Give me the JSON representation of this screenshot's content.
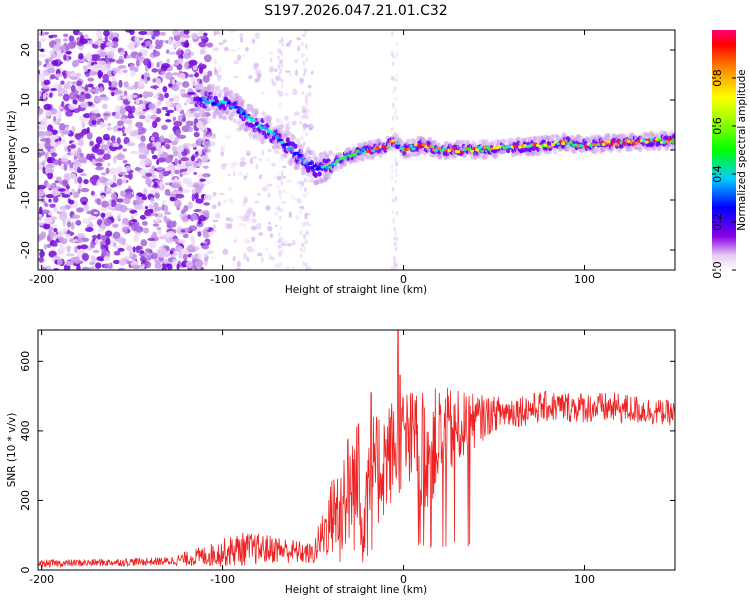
{
  "title": "S197.2026.047.21.01.C32",
  "chart_data": [
    {
      "type": "heatmap",
      "name": "spectrogram",
      "xlabel": "Height of straight line (km)",
      "ylabel": "Frequency (Hz)",
      "xlim": [
        -202,
        150
      ],
      "ylim": [
        -24,
        24
      ],
      "xticks": [
        -200,
        -100,
        0,
        100
      ],
      "yticks": [
        -20,
        -10,
        0,
        10,
        20
      ],
      "xtick_labels": [
        "-200",
        "-100",
        "0",
        "100"
      ],
      "ytick_labels": [
        "-20",
        "-10",
        "0",
        "10",
        "20"
      ],
      "ridge": [
        {
          "x": -110,
          "y": 10
        },
        {
          "x": -95,
          "y": 9
        },
        {
          "x": -85,
          "y": 6
        },
        {
          "x": -75,
          "y": 4
        },
        {
          "x": -65,
          "y": 1
        },
        {
          "x": -55,
          "y": -2
        },
        {
          "x": -47,
          "y": -4
        },
        {
          "x": -40,
          "y": -3
        },
        {
          "x": -30,
          "y": -1
        },
        {
          "x": -20,
          "y": 0
        },
        {
          "x": -10,
          "y": 0.5
        },
        {
          "x": -5,
          "y": 2
        },
        {
          "x": 0,
          "y": 0
        },
        {
          "x": 10,
          "y": 1
        },
        {
          "x": 20,
          "y": 0
        },
        {
          "x": 40,
          "y": 0
        },
        {
          "x": 60,
          "y": 0.5
        },
        {
          "x": 80,
          "y": 1
        },
        {
          "x": 90,
          "y": 1.5
        },
        {
          "x": 100,
          "y": 1
        },
        {
          "x": 120,
          "y": 1.5
        },
        {
          "x": 150,
          "y": 2
        }
      ],
      "colorbar": {
        "label": "Normalized spectral amplitude",
        "range": [
          0,
          1
        ],
        "ticks": [
          0.0,
          0.2,
          0.4,
          0.6,
          0.8
        ],
        "tick_labels": [
          "0.0",
          "0.2",
          "0.4",
          "0.6",
          "0.8"
        ],
        "colormap": "rainbow"
      }
    },
    {
      "type": "line",
      "name": "snr",
      "xlabel": "Height of straight line (km)",
      "ylabel": "SNR (10 * v/v)",
      "xlim": [
        -202,
        150
      ],
      "ylim": [
        0,
        690
      ],
      "xticks": [
        -200,
        -100,
        0,
        100
      ],
      "yticks": [
        0,
        200,
        400,
        600
      ],
      "xtick_labels": [
        "-200",
        "-100",
        "0",
        "100"
      ],
      "ytick_labels": [
        "0",
        "200",
        "400",
        "600"
      ],
      "color": "#ee2222",
      "envelope": [
        {
          "x": -202,
          "base": 18,
          "amp": 10
        },
        {
          "x": -130,
          "base": 25,
          "amp": 12
        },
        {
          "x": -110,
          "base": 40,
          "amp": 30
        },
        {
          "x": -90,
          "base": 60,
          "amp": 50
        },
        {
          "x": -70,
          "base": 60,
          "amp": 40
        },
        {
          "x": -50,
          "base": 45,
          "amp": 30
        },
        {
          "x": -40,
          "base": 150,
          "amp": 110
        },
        {
          "x": -30,
          "base": 230,
          "amp": 180
        },
        {
          "x": -20,
          "base": 250,
          "amp": 200
        },
        {
          "x": -10,
          "base": 320,
          "amp": 160
        },
        {
          "x": 0,
          "base": 380,
          "amp": 150
        },
        {
          "x": 10,
          "base": 330,
          "amp": 180
        },
        {
          "x": 20,
          "base": 380,
          "amp": 150
        },
        {
          "x": 35,
          "base": 420,
          "amp": 90
        },
        {
          "x": 50,
          "base": 450,
          "amp": 50
        },
        {
          "x": 80,
          "base": 470,
          "amp": 45
        },
        {
          "x": 120,
          "base": 465,
          "amp": 45
        },
        {
          "x": 150,
          "base": 450,
          "amp": 35
        }
      ],
      "spikes": [
        {
          "x": -3,
          "y": 690
        },
        {
          "x": -2,
          "y": 560
        },
        {
          "x": -18,
          "y": 510
        },
        {
          "x": -25,
          "y": 420
        }
      ]
    }
  ]
}
